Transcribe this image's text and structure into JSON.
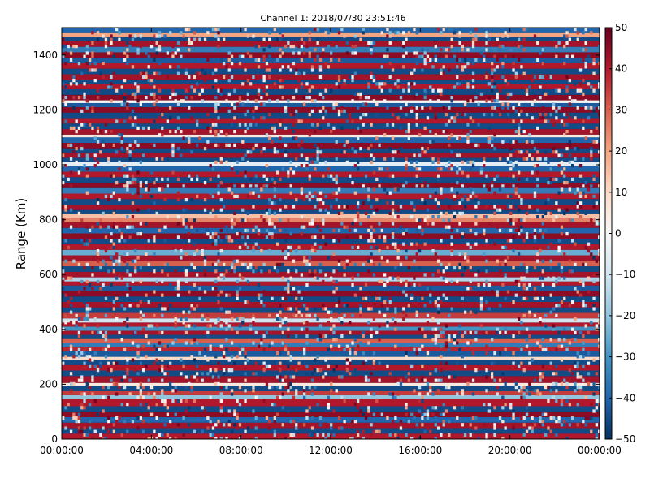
{
  "chart_data": {
    "type": "heatmap",
    "title": "Channel 1: 2018/07/30 23:51:46",
    "xlabel": "",
    "ylabel": "Range (Km)",
    "x_ticks": [
      "00:00:00",
      "04:00:00",
      "08:00:00",
      "12:00:00",
      "16:00:00",
      "20:00:00",
      "00:00:00"
    ],
    "x_range_hours": [
      0,
      24
    ],
    "y_ticks": [
      0,
      200,
      400,
      600,
      800,
      1000,
      1200,
      1400
    ],
    "y_range": [
      0,
      1500
    ],
    "colorbar": {
      "colormap": "RdBu_r",
      "range": [
        -50,
        50
      ],
      "ticks": [
        50,
        40,
        30,
        20,
        10,
        0,
        -10,
        -20,
        -30,
        -40,
        -50
      ],
      "colors": [
        "#053061",
        "#2166ac",
        "#4393c3",
        "#92c5de",
        "#d1e5f0",
        "#f7f7f7",
        "#fddbc7",
        "#f4a582",
        "#d6604d",
        "#b2182b",
        "#67001f"
      ]
    },
    "range_bins": [
      {
        "range": [
          0,
          20
        ],
        "value": 40
      },
      {
        "range": [
          20,
          40
        ],
        "value": -45
      },
      {
        "range": [
          40,
          60
        ],
        "value": 42
      },
      {
        "range": [
          60,
          80
        ],
        "value": -40
      },
      {
        "range": [
          80,
          100
        ],
        "value": 45
      },
      {
        "range": [
          100,
          120
        ],
        "value": -45
      },
      {
        "range": [
          120,
          145
        ],
        "value": 40
      },
      {
        "range": [
          145,
          160
        ],
        "value": -20
      },
      {
        "range": [
          160,
          175
        ],
        "value": 35
      },
      {
        "range": [
          175,
          195
        ],
        "value": -45
      },
      {
        "range": [
          195,
          205
        ],
        "value": 5
      },
      {
        "range": [
          205,
          230
        ],
        "value": 42
      },
      {
        "range": [
          230,
          250
        ],
        "value": -45
      },
      {
        "range": [
          250,
          270
        ],
        "value": 40
      },
      {
        "range": [
          270,
          290
        ],
        "value": -45
      },
      {
        "range": [
          290,
          300
        ],
        "value": 10
      },
      {
        "range": [
          300,
          320
        ],
        "value": -42
      },
      {
        "range": [
          320,
          335
        ],
        "value": 38
      },
      {
        "range": [
          335,
          350
        ],
        "value": -35
      },
      {
        "range": [
          350,
          365
        ],
        "value": 30
      },
      {
        "range": [
          365,
          380
        ],
        "value": -45
      },
      {
        "range": [
          380,
          395
        ],
        "value": 42
      },
      {
        "range": [
          395,
          410
        ],
        "value": -30
      },
      {
        "range": [
          410,
          425
        ],
        "value": 40
      },
      {
        "range": [
          425,
          440
        ],
        "value": -10
      },
      {
        "range": [
          440,
          460
        ],
        "value": 35
      },
      {
        "range": [
          460,
          480
        ],
        "value": -45
      },
      {
        "range": [
          480,
          500
        ],
        "value": 42
      },
      {
        "range": [
          500,
          520
        ],
        "value": -45
      },
      {
        "range": [
          520,
          540
        ],
        "value": 45
      },
      {
        "range": [
          540,
          560
        ],
        "value": -42
      },
      {
        "range": [
          560,
          575
        ],
        "value": 40
      },
      {
        "range": [
          575,
          590
        ],
        "value": -15
      },
      {
        "range": [
          590,
          610
        ],
        "value": 42
      },
      {
        "range": [
          610,
          630
        ],
        "value": -45
      },
      {
        "range": [
          630,
          650
        ],
        "value": 30
      },
      {
        "range": [
          650,
          670
        ],
        "value": 42
      },
      {
        "range": [
          670,
          690
        ],
        "value": -25
      },
      {
        "range": [
          690,
          710
        ],
        "value": 40
      },
      {
        "range": [
          710,
          730
        ],
        "value": -45
      },
      {
        "range": [
          730,
          750
        ],
        "value": 45
      },
      {
        "range": [
          750,
          770
        ],
        "value": -40
      },
      {
        "range": [
          770,
          790
        ],
        "value": 42
      },
      {
        "range": [
          790,
          805
        ],
        "value": 25
      },
      {
        "range": [
          805,
          820
        ],
        "value": 15
      },
      {
        "range": [
          820,
          835
        ],
        "value": -45
      },
      {
        "range": [
          835,
          855
        ],
        "value": 42
      },
      {
        "range": [
          855,
          875
        ],
        "value": -45
      },
      {
        "range": [
          875,
          895
        ],
        "value": 40
      },
      {
        "range": [
          895,
          915
        ],
        "value": -35
      },
      {
        "range": [
          915,
          935
        ],
        "value": 45
      },
      {
        "range": [
          935,
          955
        ],
        "value": -45
      },
      {
        "range": [
          955,
          975
        ],
        "value": 40
      },
      {
        "range": [
          975,
          995
        ],
        "value": -40
      },
      {
        "range": [
          995,
          1010
        ],
        "value": -5
      },
      {
        "range": [
          1010,
          1025
        ],
        "value": -45
      },
      {
        "range": [
          1025,
          1045
        ],
        "value": 42
      },
      {
        "range": [
          1045,
          1060
        ],
        "value": -45
      },
      {
        "range": [
          1060,
          1080
        ],
        "value": 45
      },
      {
        "range": [
          1080,
          1100
        ],
        "value": -40
      },
      {
        "range": [
          1100,
          1110
        ],
        "value": 5
      },
      {
        "range": [
          1110,
          1130
        ],
        "value": 42
      },
      {
        "range": [
          1130,
          1150
        ],
        "value": -45
      },
      {
        "range": [
          1150,
          1170
        ],
        "value": 40
      },
      {
        "range": [
          1170,
          1190
        ],
        "value": -45
      },
      {
        "range": [
          1190,
          1210
        ],
        "value": 45
      },
      {
        "range": [
          1210,
          1225
        ],
        "value": -42
      },
      {
        "range": [
          1225,
          1235
        ],
        "value": 0
      },
      {
        "range": [
          1235,
          1255
        ],
        "value": 45
      },
      {
        "range": [
          1255,
          1275
        ],
        "value": -45
      },
      {
        "range": [
          1275,
          1295
        ],
        "value": 40
      },
      {
        "range": [
          1295,
          1310
        ],
        "value": -45
      },
      {
        "range": [
          1310,
          1330
        ],
        "value": 42
      },
      {
        "range": [
          1330,
          1350
        ],
        "value": -45
      },
      {
        "range": [
          1350,
          1370
        ],
        "value": 40
      },
      {
        "range": [
          1370,
          1390
        ],
        "value": -42
      },
      {
        "range": [
          1390,
          1410
        ],
        "value": 45
      },
      {
        "range": [
          1410,
          1430
        ],
        "value": -35
      },
      {
        "range": [
          1430,
          1450
        ],
        "value": 42
      },
      {
        "range": [
          1450,
          1465
        ],
        "value": -45
      },
      {
        "range": [
          1465,
          1480
        ],
        "value": 20
      },
      {
        "range": [
          1480,
          1500
        ],
        "value": -40
      }
    ]
  }
}
